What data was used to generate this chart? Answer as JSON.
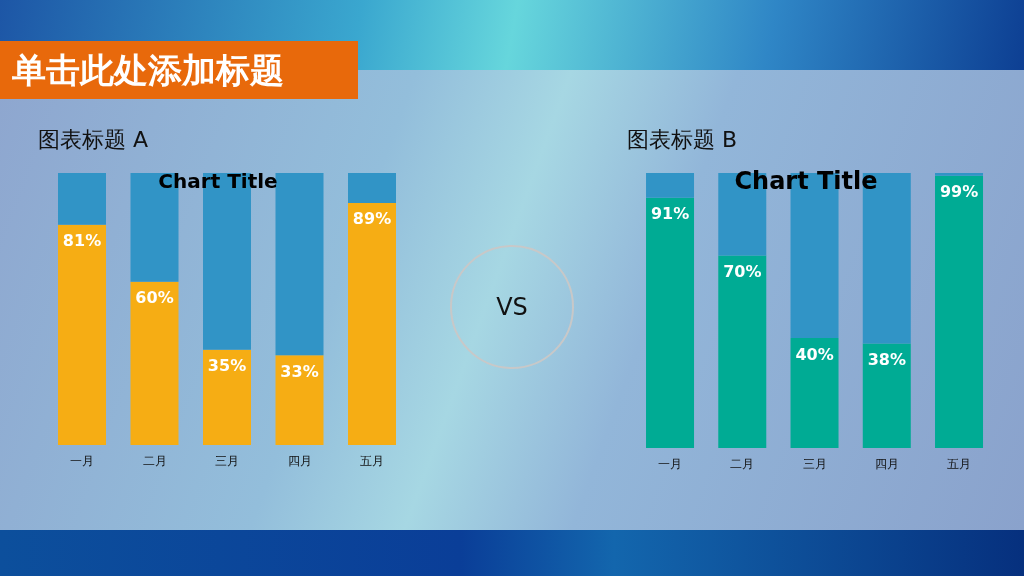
{
  "chart_data": [
    {
      "type": "bar",
      "title": "图表标题 A",
      "subtitle": "Chart Title",
      "categories": [
        "一月",
        "二月",
        "三月",
        "四月",
        "五月"
      ],
      "stacked": true,
      "ylim": [
        0,
        100
      ],
      "tick_labels": "x",
      "series": [
        {
          "color": "#f6ad14",
          "values": [
            81,
            60,
            35,
            33,
            89
          ],
          "value_labels": [
            "81%",
            "60%",
            "35%",
            "33%",
            "89%"
          ]
        },
        {
          "color": "#3194c6",
          "values": [
            19,
            40,
            65,
            67,
            11
          ]
        }
      ]
    },
    {
      "type": "bar",
      "title": "图表标题 B",
      "subtitle": "Chart Title",
      "categories": [
        "一月",
        "二月",
        "三月",
        "四月",
        "五月"
      ],
      "stacked": true,
      "ylim": [
        0,
        100
      ],
      "tick_labels": "x",
      "series": [
        {
          "color": "#00ab94",
          "values": [
            91,
            70,
            40,
            38,
            99
          ],
          "value_labels": [
            "91%",
            "70%",
            "40%",
            "38%",
            "99%"
          ]
        },
        {
          "color": "#3194c6",
          "values": [
            9,
            30,
            60,
            62,
            1
          ]
        }
      ]
    },
    {
      "type": "other",
      "title": "单击此处添加标题",
      "annotations": [
        "VS"
      ]
    }
  ]
}
